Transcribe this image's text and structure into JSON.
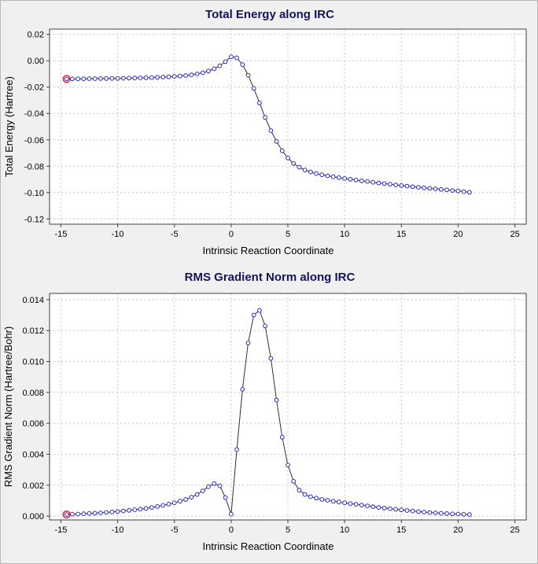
{
  "colors": {
    "background": "#f0f0f0",
    "plot_background": "#ffffff",
    "grid": "#c8c8c8",
    "frame": "#404040",
    "title_text": "#14145a",
    "axis_text": "#000000",
    "tick_text": "#000000"
  },
  "chart_data": [
    {
      "type": "line",
      "title": "Total Energy along IRC",
      "xlabel": "Intrinsic Reaction Coordinate",
      "ylabel": "Total Energy (Hartree)",
      "xlim": [
        -16,
        26
      ],
      "ylim": [
        -0.124,
        0.024
      ],
      "grid": true,
      "legend": "none",
      "marker_color": "#2828c8",
      "line_color": "#303030",
      "selected_color": "#e01010",
      "selected_index": 0,
      "x_ticks": [
        {
          "v": -15,
          "label": "-15"
        },
        {
          "v": -10,
          "label": "-10"
        },
        {
          "v": -5,
          "label": "-5"
        },
        {
          "v": 0,
          "label": "0"
        },
        {
          "v": 5,
          "label": "5"
        },
        {
          "v": 10,
          "label": "10"
        },
        {
          "v": 15,
          "label": "15"
        },
        {
          "v": 20,
          "label": "20"
        },
        {
          "v": 25,
          "label": "25"
        }
      ],
      "y_ticks": [
        {
          "v": 0.02,
          "label": "0.02"
        },
        {
          "v": 0.0,
          "label": "0.00"
        },
        {
          "v": -0.02,
          "label": "-0.02"
        },
        {
          "v": -0.04,
          "label": "-0.04"
        },
        {
          "v": -0.06,
          "label": "-0.06"
        },
        {
          "v": -0.08,
          "label": "-0.08"
        },
        {
          "v": -0.1,
          "label": "-0.10"
        },
        {
          "v": -0.12,
          "label": "-0.12"
        }
      ],
      "x": [
        -14.5,
        -14,
        -13.5,
        -13,
        -12.5,
        -12,
        -11.5,
        -11,
        -10.5,
        -10,
        -9.5,
        -9,
        -8.5,
        -8,
        -7.5,
        -7,
        -6.5,
        -6,
        -5.5,
        -5,
        -4.5,
        -4,
        -3.5,
        -3,
        -2.5,
        -2,
        -1.5,
        -1,
        -0.5,
        0,
        0.5,
        1,
        1.5,
        2,
        2.5,
        3,
        3.5,
        4,
        4.5,
        5,
        5.5,
        6,
        6.5,
        7,
        7.5,
        8,
        8.5,
        9,
        9.5,
        10,
        10.5,
        11,
        11.5,
        12,
        12.5,
        13,
        13.5,
        14,
        14.5,
        15,
        15.5,
        16,
        16.5,
        17,
        17.5,
        18,
        18.5,
        19,
        19.5,
        20,
        20.5,
        21
      ],
      "y": [
        -0.0138,
        -0.0138,
        -0.0137,
        -0.0137,
        -0.0136,
        -0.0136,
        -0.0135,
        -0.0135,
        -0.0134,
        -0.0134,
        -0.0133,
        -0.0132,
        -0.0131,
        -0.013,
        -0.0129,
        -0.0128,
        -0.0126,
        -0.0124,
        -0.0122,
        -0.0119,
        -0.0116,
        -0.0112,
        -0.0107,
        -0.01,
        -0.0091,
        -0.0078,
        -0.0061,
        -0.0038,
        -0.0007,
        0.003,
        0.0022,
        -0.003,
        -0.011,
        -0.021,
        -0.032,
        -0.043,
        -0.053,
        -0.0613,
        -0.0683,
        -0.0738,
        -0.0779,
        -0.0808,
        -0.0829,
        -0.0844,
        -0.0856,
        -0.0865,
        -0.0873,
        -0.088,
        -0.0887,
        -0.0893,
        -0.0899,
        -0.0905,
        -0.0911,
        -0.0916,
        -0.0922,
        -0.0927,
        -0.0932,
        -0.0937,
        -0.0942,
        -0.0947,
        -0.0951,
        -0.0956,
        -0.096,
        -0.0964,
        -0.0968,
        -0.0972,
        -0.0976,
        -0.098,
        -0.0984,
        -0.0988,
        -0.0993,
        -0.0998
      ]
    },
    {
      "type": "line",
      "title": "RMS Gradient Norm along IRC",
      "xlabel": "Intrinsic Reaction Coordinate",
      "ylabel": "RMS Gradient Norm (Hartree/Bohr)",
      "xlim": [
        -16,
        26
      ],
      "ylim": [
        -0.00025,
        0.0144
      ],
      "grid": true,
      "legend": "none",
      "marker_color": "#2828c8",
      "line_color": "#303030",
      "selected_color": "#e01010",
      "selected_index": 0,
      "x_ticks": [
        {
          "v": -15,
          "label": "-15"
        },
        {
          "v": -10,
          "label": "-10"
        },
        {
          "v": -5,
          "label": "-5"
        },
        {
          "v": 0,
          "label": "0"
        },
        {
          "v": 5,
          "label": "5"
        },
        {
          "v": 10,
          "label": "10"
        },
        {
          "v": 15,
          "label": "15"
        },
        {
          "v": 20,
          "label": "20"
        },
        {
          "v": 25,
          "label": "25"
        }
      ],
      "y_ticks": [
        {
          "v": 0.0,
          "label": "0.000"
        },
        {
          "v": 0.002,
          "label": "0.002"
        },
        {
          "v": 0.004,
          "label": "0.004"
        },
        {
          "v": 0.006,
          "label": "0.006"
        },
        {
          "v": 0.008,
          "label": "0.008"
        },
        {
          "v": 0.01,
          "label": "0.010"
        },
        {
          "v": 0.012,
          "label": "0.012"
        },
        {
          "v": 0.014,
          "label": "0.014"
        }
      ],
      "x": [
        -14.5,
        -14,
        -13.5,
        -13,
        -12.5,
        -12,
        -11.5,
        -11,
        -10.5,
        -10,
        -9.5,
        -9,
        -8.5,
        -8,
        -7.5,
        -7,
        -6.5,
        -6,
        -5.5,
        -5,
        -4.5,
        -4,
        -3.5,
        -3,
        -2.5,
        -2,
        -1.5,
        -1,
        -0.5,
        0,
        0.5,
        1,
        1.5,
        2,
        2.5,
        3,
        3.5,
        4,
        4.5,
        5,
        5.5,
        6,
        6.5,
        7,
        7.5,
        8,
        8.5,
        9,
        9.5,
        10,
        10.5,
        11,
        11.5,
        12,
        12.5,
        13,
        13.5,
        14,
        14.5,
        15,
        15.5,
        16,
        16.5,
        17,
        17.5,
        18,
        18.5,
        19,
        19.5,
        20,
        20.5,
        21
      ],
      "y": [
        0.0001,
        0.00012,
        0.00013,
        0.00015,
        0.00017,
        0.00019,
        0.00021,
        0.00024,
        0.00027,
        0.0003,
        0.00033,
        0.00037,
        0.00041,
        0.00045,
        0.0005,
        0.00056,
        0.00062,
        0.00069,
        0.00077,
        0.00086,
        0.00096,
        0.00108,
        0.00122,
        0.0014,
        0.00163,
        0.0019,
        0.0021,
        0.00196,
        0.0012,
        0.00012,
        0.0043,
        0.0082,
        0.0112,
        0.013,
        0.0133,
        0.0123,
        0.0102,
        0.0075,
        0.0051,
        0.0033,
        0.00225,
        0.00168,
        0.0014,
        0.00125,
        0.00116,
        0.00108,
        0.00102,
        0.00096,
        0.00091,
        0.00086,
        0.00081,
        0.00076,
        0.00071,
        0.00066,
        0.00061,
        0.00056,
        0.00052,
        0.00048,
        0.00044,
        0.0004,
        0.00036,
        0.00033,
        0.00029,
        0.00026,
        0.00023,
        0.00021,
        0.00018,
        0.00016,
        0.00014,
        0.00013,
        0.00011,
        0.0001
      ]
    }
  ]
}
